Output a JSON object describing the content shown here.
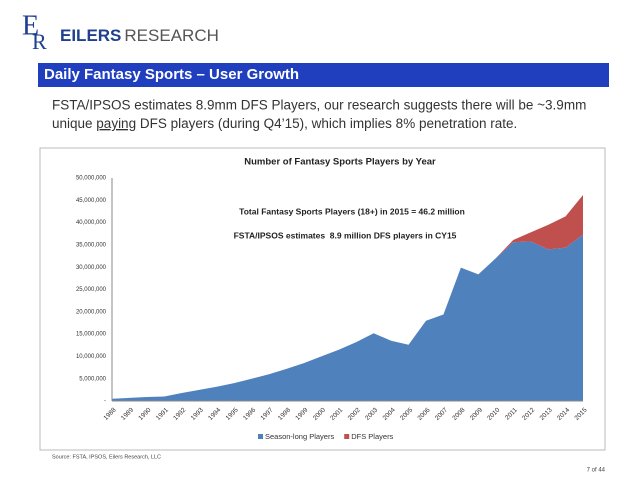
{
  "logo": {
    "letters": [
      "E",
      "R"
    ],
    "name_bold": "EILERS",
    "name_light": "RESEARCH"
  },
  "header": {
    "title": "Daily Fantasy Sports – User Growth"
  },
  "body": {
    "line1": "FSTA/IPSOS estimates 8.9mm DFS Players, our research suggests there will be ~3.9mm",
    "line2_before": "unique ",
    "line2_underlined": "paying",
    "line2_after": " DFS players (during Q4’15), which implies 8% penetration rate."
  },
  "chart_data": {
    "type": "stacked_area",
    "title": "Number of Fantasy Sports Players by Year",
    "annotations": [
      "Total Fantasy Sports Players (18+) in 2015 = 46.2 million",
      "FSTA/IPSOS estimates  8.9 million DFS players in CY15"
    ],
    "categories": [
      "1988",
      "1989",
      "1990",
      "1991",
      "1992",
      "1993",
      "1994",
      "1995",
      "1996",
      "1997",
      "1998",
      "1999",
      "2000",
      "2001",
      "2002",
      "2003",
      "2004",
      "2005",
      "2006",
      "2007",
      "2008",
      "2009",
      "2010",
      "2011",
      "2012",
      "2013",
      "2014",
      "2015"
    ],
    "series": [
      {
        "name": "Season-long Players",
        "color": "#4f81bd",
        "values": [
          500000,
          700000,
          900000,
          1000000,
          1800000,
          2500000,
          3200000,
          4000000,
          5000000,
          6000000,
          7200000,
          8500000,
          10000000,
          11500000,
          13200000,
          15200000,
          13500000,
          12600000,
          18000000,
          19400000,
          29900000,
          28400000,
          32000000,
          35600000,
          35800000,
          34000000,
          34400000,
          37300000
        ]
      },
      {
        "name": "DFS Players",
        "color": "#c0504d",
        "values": [
          0,
          0,
          0,
          0,
          0,
          0,
          0,
          0,
          0,
          0,
          0,
          0,
          0,
          0,
          0,
          0,
          0,
          0,
          0,
          0,
          0,
          0,
          0,
          500000,
          2000000,
          5500000,
          7000000,
          8900000
        ]
      }
    ],
    "ylim": [
      0,
      50000000
    ],
    "yticks": [
      {
        "value": 0,
        "label": "-"
      },
      {
        "value": 5000000,
        "label": "5,000,000"
      },
      {
        "value": 10000000,
        "label": "10,000,000"
      },
      {
        "value": 15000000,
        "label": "15,000,000"
      },
      {
        "value": 20000000,
        "label": "20,000,000"
      },
      {
        "value": 25000000,
        "label": "25,000,000"
      },
      {
        "value": 30000000,
        "label": "30,000,000"
      },
      {
        "value": 35000000,
        "label": "35,000,000"
      },
      {
        "value": 40000000,
        "label": "40,000,000"
      },
      {
        "value": 45000000,
        "label": "45,000,000"
      },
      {
        "value": 50000000,
        "label": "50,000,000"
      }
    ],
    "legend": "bottom"
  },
  "footer": {
    "source": "Source: FSTA, IPSOS, Eilers Research, LLC",
    "page": "7 of 44"
  }
}
